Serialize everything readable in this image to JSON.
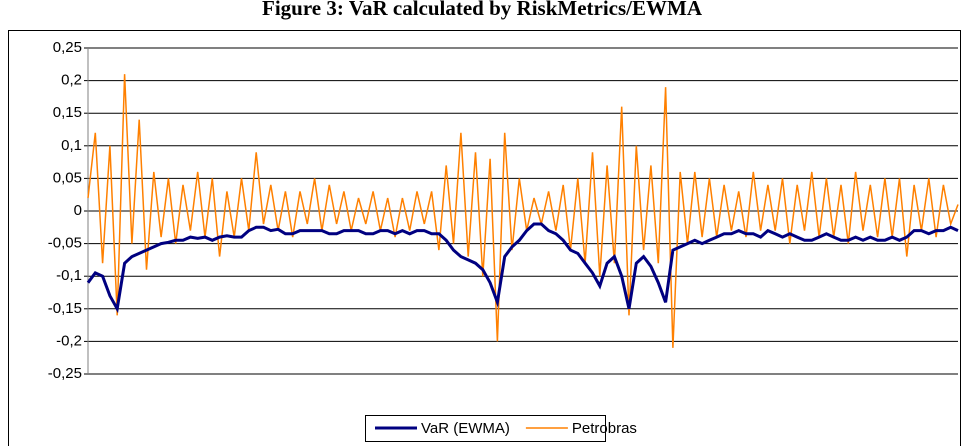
{
  "chart_data": {
    "type": "line",
    "title": "Figure 3: VaR calculated by RiskMetrics/EWMA",
    "ylim": [
      -0.25,
      0.25
    ],
    "yticks": [
      {
        "value": -0.25,
        "label": "-0,25"
      },
      {
        "value": -0.2,
        "label": "-0,2"
      },
      {
        "value": -0.15,
        "label": "-0,15"
      },
      {
        "value": -0.1,
        "label": "-0,1"
      },
      {
        "value": -0.05,
        "label": "-0,05"
      },
      0,
      {
        "value": 0.05,
        "label": "0,05"
      },
      {
        "value": 0.1,
        "label": "0,1"
      },
      {
        "value": 0.15,
        "label": "0,15"
      },
      {
        "value": 0.2,
        "label": "0,2"
      },
      {
        "value": 0.25,
        "label": "0,25"
      }
    ],
    "grid": true,
    "legend": "bottom",
    "series": [
      {
        "name": "VaR (EWMA)",
        "color": "#000080",
        "values": [
          -0.11,
          -0.095,
          -0.1,
          -0.13,
          -0.15,
          -0.08,
          -0.07,
          -0.065,
          -0.06,
          -0.055,
          -0.05,
          -0.048,
          -0.045,
          -0.045,
          -0.04,
          -0.042,
          -0.04,
          -0.045,
          -0.04,
          -0.038,
          -0.04,
          -0.04,
          -0.03,
          -0.025,
          -0.025,
          -0.03,
          -0.028,
          -0.035,
          -0.035,
          -0.03,
          -0.03,
          -0.03,
          -0.03,
          -0.035,
          -0.035,
          -0.03,
          -0.03,
          -0.03,
          -0.035,
          -0.035,
          -0.03,
          -0.03,
          -0.035,
          -0.03,
          -0.035,
          -0.03,
          -0.03,
          -0.035,
          -0.035,
          -0.045,
          -0.06,
          -0.07,
          -0.075,
          -0.08,
          -0.09,
          -0.11,
          -0.14,
          -0.07,
          -0.055,
          -0.045,
          -0.03,
          -0.02,
          -0.02,
          -0.03,
          -0.035,
          -0.045,
          -0.06,
          -0.065,
          -0.08,
          -0.095,
          -0.115,
          -0.08,
          -0.07,
          -0.1,
          -0.15,
          -0.08,
          -0.07,
          -0.085,
          -0.11,
          -0.14,
          -0.06,
          -0.055,
          -0.05,
          -0.045,
          -0.05,
          -0.045,
          -0.04,
          -0.035,
          -0.035,
          -0.03,
          -0.035,
          -0.035,
          -0.04,
          -0.03,
          -0.035,
          -0.04,
          -0.035,
          -0.04,
          -0.045,
          -0.045,
          -0.04,
          -0.035,
          -0.04,
          -0.045,
          -0.045,
          -0.04,
          -0.045,
          -0.04,
          -0.045,
          -0.045,
          -0.04,
          -0.045,
          -0.04,
          -0.03,
          -0.03,
          -0.035,
          -0.03,
          -0.03,
          -0.025,
          -0.03
        ]
      },
      {
        "name": "Petrobras",
        "color": "#ff8000",
        "values": [
          0.02,
          0.12,
          -0.08,
          0.1,
          -0.16,
          0.21,
          -0.05,
          0.14,
          -0.09,
          0.06,
          -0.04,
          0.05,
          -0.05,
          0.04,
          -0.03,
          0.06,
          -0.04,
          0.05,
          -0.07,
          0.03,
          -0.04,
          0.05,
          -0.03,
          0.09,
          -0.02,
          0.04,
          -0.03,
          0.03,
          -0.04,
          0.03,
          -0.02,
          0.05,
          -0.03,
          0.04,
          -0.02,
          0.03,
          -0.03,
          0.02,
          -0.02,
          0.03,
          -0.03,
          0.02,
          -0.04,
          0.02,
          -0.03,
          0.03,
          -0.02,
          0.03,
          -0.06,
          0.07,
          -0.05,
          0.12,
          -0.07,
          0.09,
          -0.1,
          0.08,
          -0.2,
          0.12,
          -0.06,
          0.05,
          -0.03,
          0.02,
          -0.02,
          0.03,
          -0.03,
          0.04,
          -0.06,
          0.05,
          -0.08,
          0.09,
          -0.1,
          0.07,
          -0.08,
          0.16,
          -0.16,
          0.1,
          -0.06,
          0.07,
          -0.08,
          0.19,
          -0.21,
          0.06,
          -0.05,
          0.06,
          -0.04,
          0.05,
          -0.04,
          0.04,
          -0.03,
          0.03,
          -0.04,
          0.06,
          -0.03,
          0.04,
          -0.03,
          0.05,
          -0.05,
          0.04,
          -0.03,
          0.06,
          -0.04,
          0.05,
          -0.04,
          0.04,
          -0.05,
          0.06,
          -0.03,
          0.04,
          -0.04,
          0.05,
          -0.04,
          0.05,
          -0.07,
          0.04,
          -0.03,
          0.05,
          -0.04,
          0.04,
          -0.02,
          0.01
        ]
      }
    ]
  }
}
